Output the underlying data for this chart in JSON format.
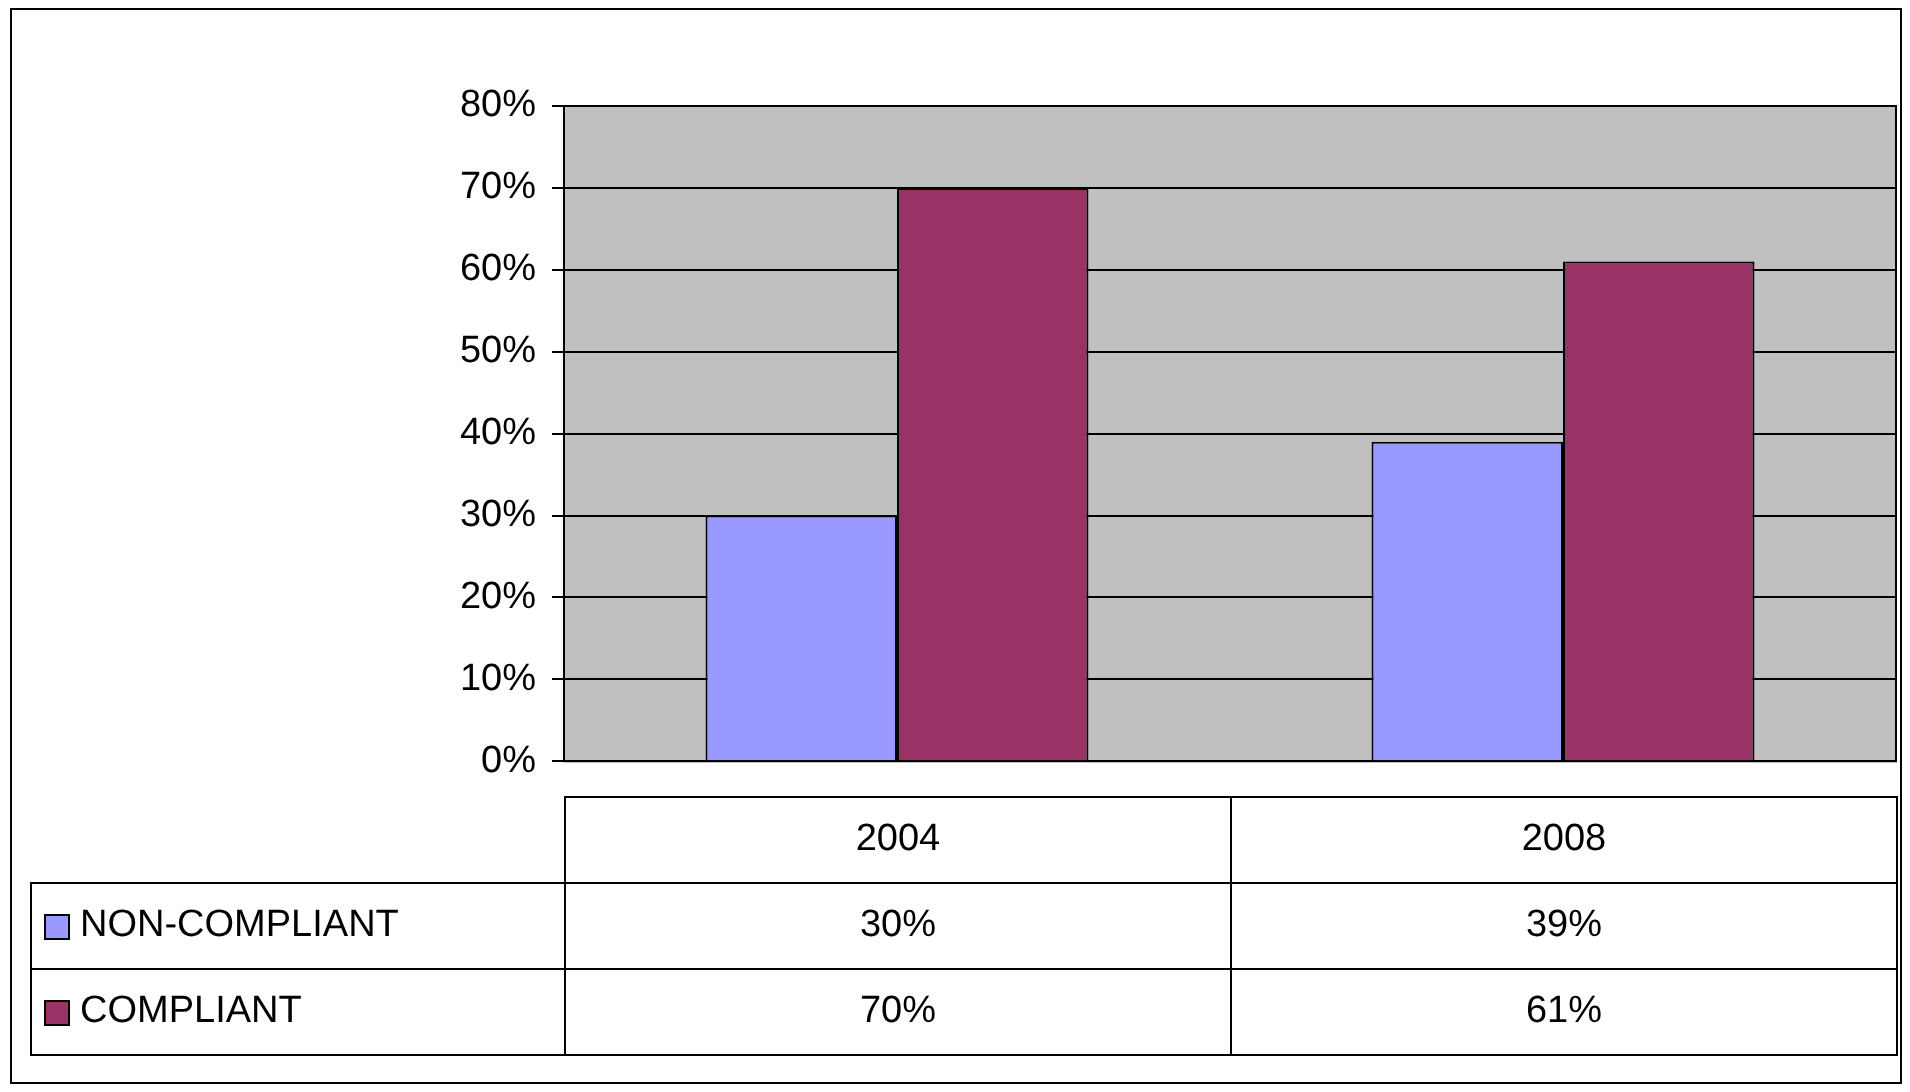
{
  "chart_data": {
    "type": "bar",
    "categories": [
      "2004",
      "2008"
    ],
    "series": [
      {
        "name": "NON-COMPLIANT",
        "color": "#9999ff",
        "values": [
          30,
          39
        ],
        "value_labels": [
          "30%",
          "39%"
        ]
      },
      {
        "name": "COMPLIANT",
        "color": "#993366",
        "values": [
          70,
          61
        ],
        "value_labels": [
          "70%",
          "61%"
        ]
      }
    ],
    "ylim": [
      0,
      80
    ],
    "yticks": [
      {
        "value": 0,
        "label": "0%"
      },
      {
        "value": 10,
        "label": "10%"
      },
      {
        "value": 20,
        "label": "20%"
      },
      {
        "value": 30,
        "label": "30%"
      },
      {
        "value": 40,
        "label": "40%"
      },
      {
        "value": 50,
        "label": "50%"
      },
      {
        "value": 60,
        "label": "60%"
      },
      {
        "value": 70,
        "label": "70%"
      },
      {
        "value": 80,
        "label": "80%"
      }
    ],
    "grid": "y",
    "legend": "bottom"
  }
}
